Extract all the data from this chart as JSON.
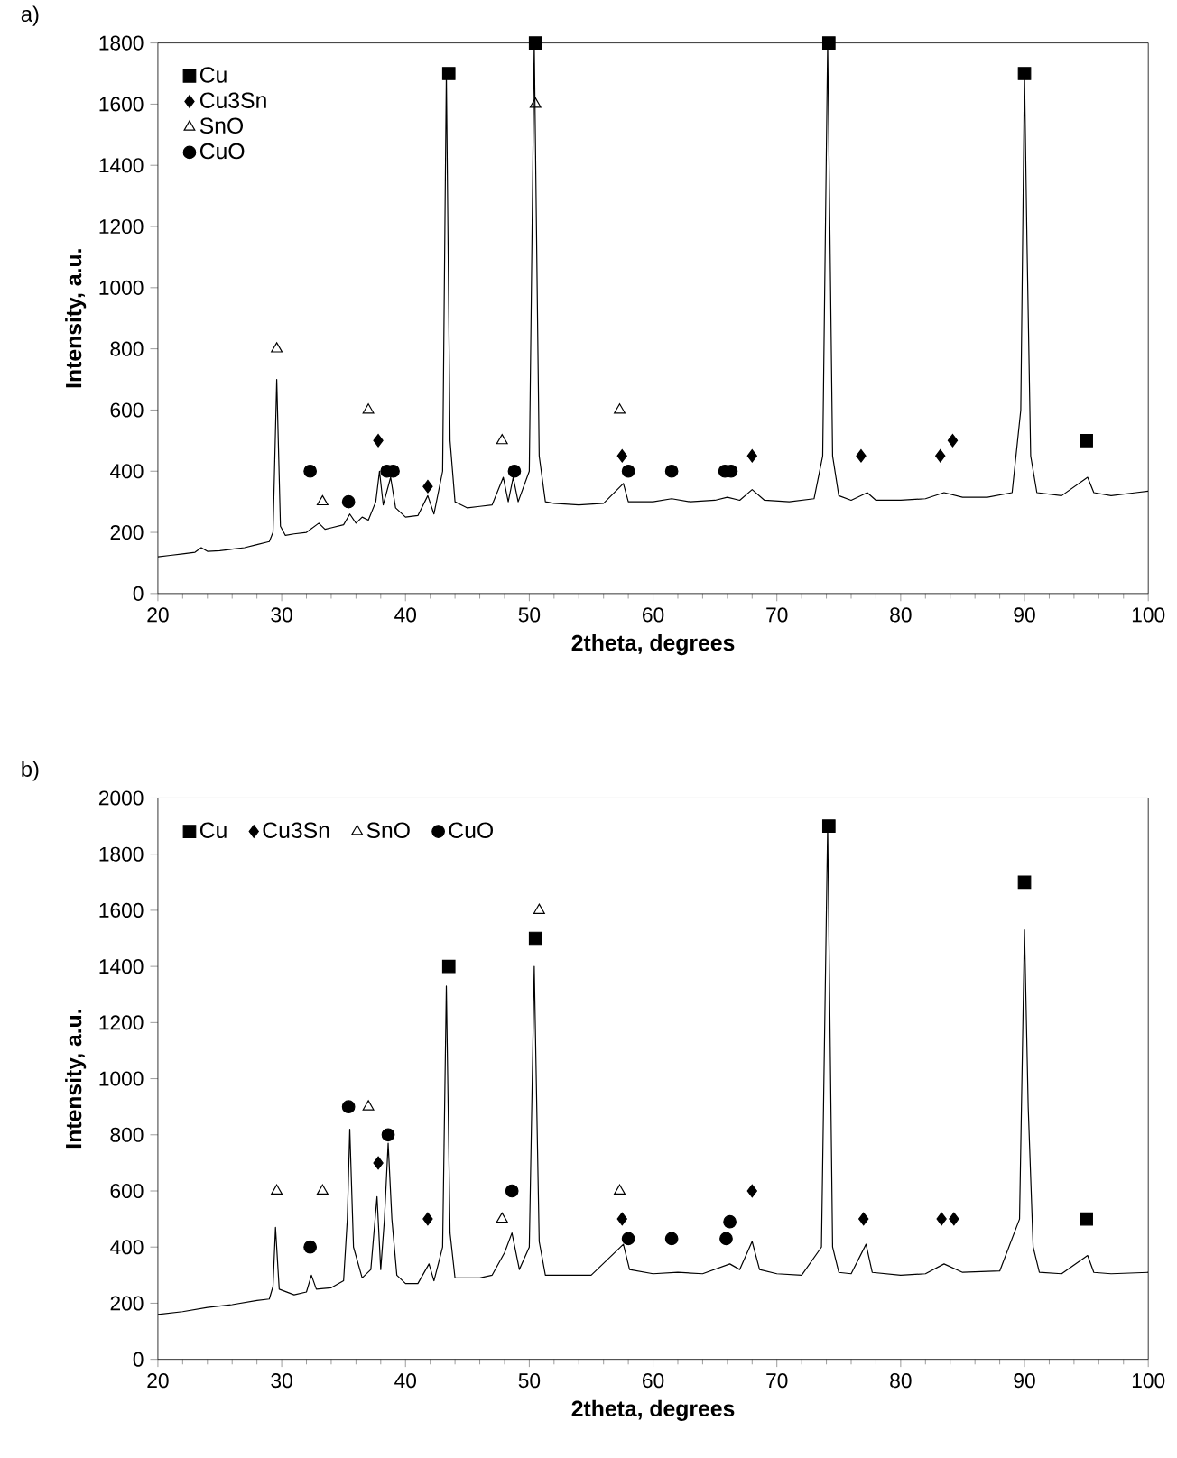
{
  "chart_data": [
    {
      "type": "line",
      "title": "a)",
      "xlabel": "2theta, degrees",
      "ylabel": "Intensity, a.u.",
      "xlim": [
        20,
        100
      ],
      "xticks": [
        20,
        30,
        40,
        50,
        60,
        70,
        80,
        90,
        100
      ],
      "ylim": [
        0,
        1800
      ],
      "yticks": [
        0,
        200,
        400,
        600,
        800,
        1000,
        1200,
        1400,
        1600,
        1800
      ],
      "grid": false,
      "legend": "top left",
      "series": [
        {
          "color": "#000000",
          "marker": "none",
          "x": [
            20,
            21,
            22,
            23,
            23.5,
            24,
            25,
            26,
            27,
            28,
            29,
            29.3,
            29.6,
            29.9,
            30.3,
            31,
            32,
            32.5,
            33,
            33.5,
            34,
            35,
            35.5,
            36,
            36.5,
            37,
            37.6,
            37.9,
            38.2,
            38.8,
            39.2,
            40,
            41,
            41.8,
            42.3,
            43,
            43.3,
            43.6,
            44,
            45,
            46,
            47,
            47.9,
            48.3,
            48.7,
            49.1,
            50,
            50.4,
            50.8,
            51.3,
            52,
            54,
            56,
            57.6,
            58,
            60,
            61.5,
            63,
            65,
            66,
            67,
            68,
            69,
            71,
            73,
            73.7,
            74.1,
            74.5,
            75,
            76,
            77.3,
            78,
            80,
            82,
            83.5,
            85,
            87,
            89,
            89.7,
            90,
            90.2,
            90.5,
            91,
            93,
            95.1,
            95.6,
            97,
            99,
            100
          ],
          "values": [
            120,
            125,
            130,
            135,
            150,
            138,
            140,
            145,
            150,
            160,
            170,
            200,
            700,
            220,
            190,
            195,
            200,
            215,
            230,
            210,
            215,
            225,
            260,
            230,
            250,
            240,
            300,
            400,
            290,
            380,
            280,
            250,
            255,
            320,
            260,
            400,
            1700,
            500,
            300,
            280,
            285,
            290,
            380,
            300,
            380,
            300,
            400,
            1800,
            450,
            300,
            295,
            290,
            295,
            360,
            300,
            300,
            310,
            300,
            305,
            315,
            305,
            340,
            305,
            300,
            310,
            450,
            1800,
            450,
            320,
            305,
            330,
            305,
            305,
            310,
            330,
            315,
            315,
            330,
            600,
            1700,
            1150,
            450,
            330,
            320,
            380,
            330,
            320,
            330,
            335
          ]
        },
        {
          "type": "scatter",
          "name": "Cu",
          "color": "#000000",
          "marker": "square",
          "x": [
            43.5,
            50.5,
            74.2,
            90,
            95
          ],
          "values": [
            1700,
            1800,
            1800,
            1700,
            500
          ]
        },
        {
          "type": "scatter",
          "name": "Cu3Sn",
          "color": "#000000",
          "marker": "diamond",
          "x": [
            37.8,
            41.8,
            57.5,
            68,
            76.8,
            83.2,
            84.2
          ],
          "values": [
            500,
            350,
            450,
            450,
            450,
            450,
            500
          ]
        },
        {
          "type": "scatter",
          "name": "SnO",
          "color": "#000000",
          "marker": "triangle",
          "x": [
            29.6,
            33.3,
            37,
            47.8,
            50.5,
            57.3
          ],
          "values": [
            800,
            300,
            600,
            500,
            1600,
            600
          ]
        },
        {
          "type": "scatter",
          "name": "CuO",
          "color": "#000000",
          "marker": "circle",
          "x": [
            32.3,
            35.4,
            38.5,
            39,
            48.8,
            58,
            61.5,
            65.8,
            66.3
          ],
          "values": [
            400,
            300,
            400,
            400,
            400,
            400,
            400,
            400,
            400
          ]
        }
      ]
    },
    {
      "type": "line",
      "title": "b)",
      "xlabel": "2theta, degrees",
      "ylabel": "Intensity, a.u.",
      "xlim": [
        20,
        100
      ],
      "xticks": [
        20,
        30,
        40,
        50,
        60,
        70,
        80,
        90,
        100
      ],
      "ylim": [
        0,
        2000
      ],
      "yticks": [
        0,
        200,
        400,
        600,
        800,
        1000,
        1200,
        1400,
        1600,
        1800,
        2000
      ],
      "grid": false,
      "legend": "top",
      "series": [
        {
          "color": "#000000",
          "marker": "none",
          "x": [
            20,
            22,
            24,
            26,
            28,
            29,
            29.3,
            29.5,
            29.8,
            31,
            32,
            32.4,
            32.8,
            34,
            35,
            35.3,
            35.5,
            35.8,
            36.5,
            37.2,
            37.7,
            38,
            38.3,
            38.6,
            38.9,
            39.3,
            40,
            41,
            41.9,
            42.3,
            43,
            43.3,
            43.6,
            44,
            45,
            46,
            47,
            48,
            48.6,
            49.2,
            50,
            50.4,
            50.8,
            51.3,
            53,
            55,
            57.6,
            58.1,
            60,
            62,
            64,
            66.2,
            67,
            68,
            68.6,
            70,
            72,
            73.6,
            74.1,
            74.5,
            75,
            76,
            77.2,
            77.7,
            80,
            82,
            83.5,
            85,
            88,
            89.6,
            90,
            90.3,
            90.7,
            91.2,
            93,
            95.1,
            95.6,
            97,
            100
          ],
          "values": [
            160,
            170,
            185,
            195,
            210,
            215,
            260,
            470,
            250,
            230,
            240,
            300,
            250,
            255,
            280,
            500,
            820,
            400,
            290,
            320,
            580,
            320,
            500,
            770,
            500,
            300,
            270,
            270,
            340,
            280,
            400,
            1330,
            450,
            290,
            290,
            290,
            300,
            380,
            450,
            320,
            400,
            1400,
            420,
            300,
            300,
            300,
            410,
            320,
            305,
            310,
            305,
            340,
            320,
            420,
            320,
            305,
            300,
            400,
            1900,
            400,
            310,
            305,
            410,
            310,
            300,
            305,
            340,
            310,
            315,
            500,
            1530,
            900,
            400,
            310,
            305,
            370,
            310,
            305,
            310
          ]
        },
        {
          "type": "scatter",
          "name": "Cu",
          "color": "#000000",
          "marker": "square",
          "x": [
            43.5,
            50.5,
            74.2,
            90,
            95
          ],
          "values": [
            1400,
            1500,
            1900,
            1700,
            500
          ]
        },
        {
          "type": "scatter",
          "name": "Cu3Sn",
          "color": "#000000",
          "marker": "diamond",
          "x": [
            37.8,
            41.8,
            57.5,
            68,
            77,
            83.3,
            84.3
          ],
          "values": [
            700,
            500,
            500,
            600,
            500,
            500,
            500
          ]
        },
        {
          "type": "scatter",
          "name": "SnO",
          "color": "#000000",
          "marker": "triangle",
          "x": [
            29.6,
            33.3,
            37,
            47.8,
            50.8,
            57.3
          ],
          "values": [
            600,
            600,
            900,
            500,
            1600,
            600
          ]
        },
        {
          "type": "scatter",
          "name": "CuO",
          "color": "#000000",
          "marker": "circle",
          "x": [
            32.3,
            35.4,
            38.6,
            48.6,
            58,
            61.5,
            65.9,
            66.2
          ],
          "values": [
            400,
            900,
            800,
            600,
            430,
            430,
            430,
            490
          ]
        }
      ]
    }
  ]
}
